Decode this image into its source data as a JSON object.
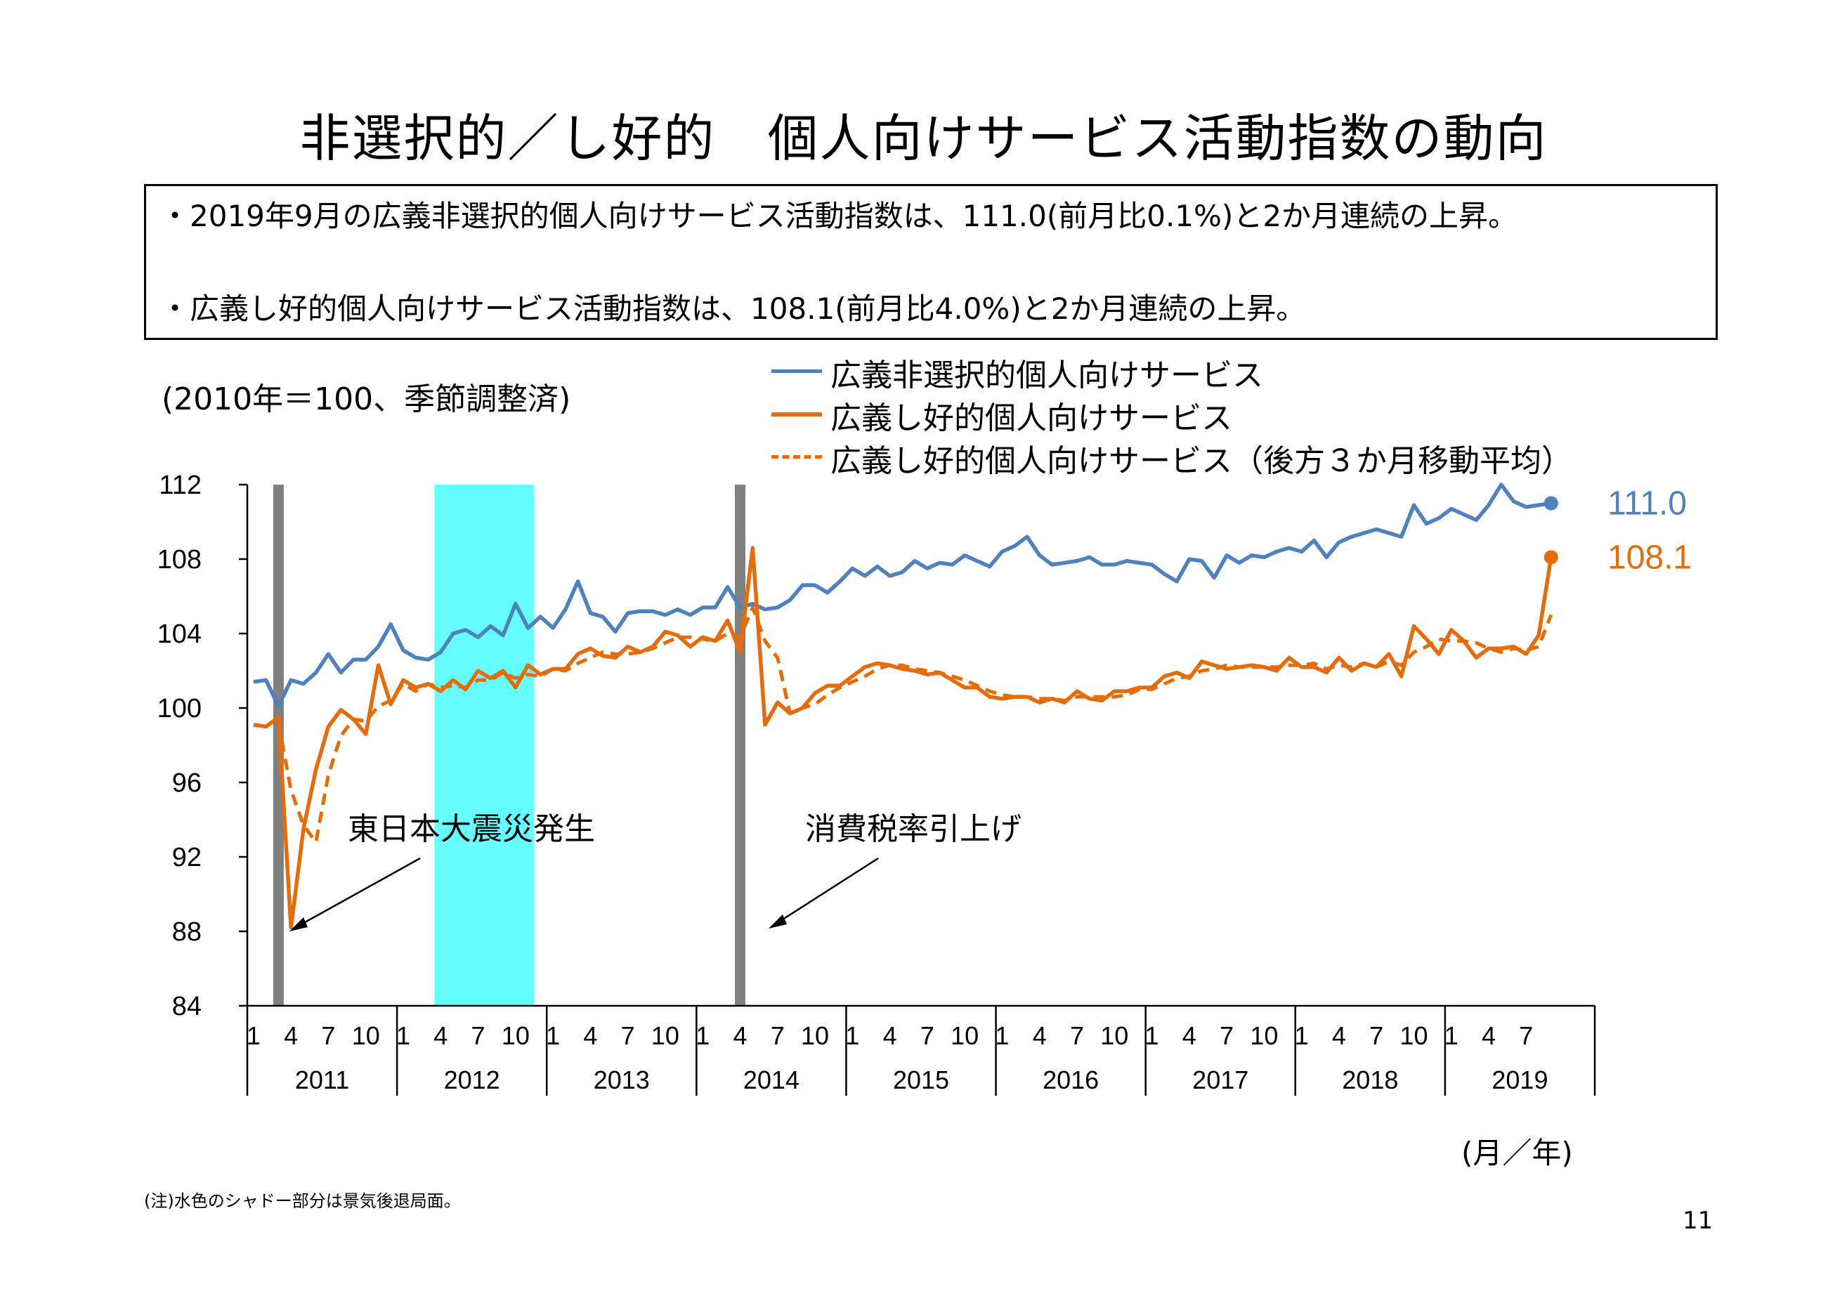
{
  "title": "非選択的／し好的　個人向けサービス活動指数の動向",
  "summary": {
    "bullet1": "・2019年9月の広義非選択的個人向けサービス活動指数は、111.0(前月比0.1%)と2か月連続の上昇。",
    "bullet2": "・広義し好的個人向けサービス活動指数は、108.1(前月比4.0%)と2か月連続の上昇。"
  },
  "unit_note": "(2010年＝100、季節調整済)",
  "x_unit": "(月／年)",
  "footnote": "(注)水色のシャドー部分は景気後退局面。",
  "page_number": "11",
  "colors": {
    "blue": "#4f81bd",
    "orange": "#e46c0a",
    "recession": "#66ffff",
    "event_bar": "#808080"
  },
  "chart_data": {
    "type": "line",
    "start": "2011-01",
    "ylim": [
      84,
      112
    ],
    "yticks": [
      84,
      88,
      92,
      96,
      100,
      104,
      108,
      112
    ],
    "month_ticks": [
      "1",
      "4",
      "7",
      "10"
    ],
    "years": [
      "2011",
      "2012",
      "2013",
      "2014",
      "2015",
      "2016",
      "2017",
      "2018",
      "2019"
    ],
    "series": [
      {
        "name": "広義非選択的個人向けサービス",
        "style": "solid",
        "color": "#4f81bd",
        "values": [
          101.4,
          101.5,
          100.1,
          101.5,
          101.3,
          101.9,
          102.9,
          101.9,
          102.6,
          102.6,
          103.3,
          104.5,
          103.1,
          102.7,
          102.6,
          103.0,
          104.0,
          104.2,
          103.8,
          104.4,
          103.9,
          105.6,
          104.3,
          104.9,
          104.3,
          105.3,
          106.8,
          105.1,
          104.9,
          104.1,
          105.1,
          105.2,
          105.2,
          105.0,
          105.3,
          105.0,
          105.4,
          105.4,
          106.5,
          105.4,
          105.6,
          105.3,
          105.4,
          105.8,
          106.6,
          106.6,
          106.2,
          106.8,
          107.5,
          107.1,
          107.6,
          107.1,
          107.3,
          107.9,
          107.5,
          107.8,
          107.7,
          108.2,
          107.9,
          107.6,
          108.4,
          108.7,
          109.2,
          108.2,
          107.7,
          107.8,
          107.9,
          108.1,
          107.7,
          107.7,
          107.9,
          107.8,
          107.7,
          107.2,
          106.8,
          108.0,
          107.9,
          107.0,
          108.2,
          107.8,
          108.2,
          108.1,
          108.4,
          108.6,
          108.4,
          109.0,
          108.1,
          108.9,
          109.2,
          109.4,
          109.6,
          109.4,
          109.2,
          110.9,
          109.9,
          110.2,
          110.7,
          110.4,
          110.1,
          110.9,
          112.0,
          111.1,
          110.8,
          110.9,
          111.0
        ]
      },
      {
        "name": "広義し好的個人向けサービス",
        "style": "solid",
        "color": "#e46c0a",
        "values": [
          99.1,
          99.0,
          99.5,
          88.2,
          93.5,
          96.7,
          99.0,
          99.9,
          99.4,
          98.6,
          102.3,
          100.2,
          101.5,
          101.1,
          101.3,
          100.9,
          101.5,
          101.0,
          102.0,
          101.6,
          102.0,
          101.1,
          102.3,
          101.8,
          102.1,
          102.1,
          102.9,
          103.2,
          102.8,
          102.7,
          103.3,
          103.0,
          103.3,
          104.1,
          103.9,
          103.3,
          103.8,
          103.6,
          104.7,
          103.0,
          108.6,
          99.1,
          100.3,
          99.7,
          100.0,
          100.8,
          101.2,
          101.2,
          101.7,
          102.2,
          102.4,
          102.3,
          102.1,
          102.0,
          101.8,
          101.9,
          101.5,
          101.1,
          101.1,
          100.6,
          100.5,
          100.6,
          100.6,
          100.3,
          100.5,
          100.3,
          100.9,
          100.5,
          100.4,
          100.9,
          100.9,
          101.1,
          101.1,
          101.7,
          101.9,
          101.6,
          102.5,
          102.3,
          102.1,
          102.2,
          102.3,
          102.2,
          102.0,
          102.7,
          102.2,
          102.2,
          101.9,
          102.7,
          102.0,
          102.4,
          102.2,
          102.9,
          101.7,
          104.4,
          103.7,
          102.9,
          104.2,
          103.6,
          102.7,
          103.2,
          103.2,
          103.3,
          102.9,
          103.9,
          108.1
        ]
      },
      {
        "name": "広義し好的個人向けサービス（後方３か月移動平均）",
        "style": "dashed",
        "color": "#e46c0a",
        "values": [
          null,
          null,
          99.2,
          95.6,
          93.7,
          92.8,
          96.4,
          98.5,
          99.4,
          99.3,
          100.1,
          100.4,
          101.3,
          100.9,
          101.3,
          101.1,
          101.2,
          101.1,
          101.5,
          101.5,
          101.9,
          101.6,
          101.8,
          101.7,
          102.1,
          102.0,
          102.4,
          102.7,
          103.0,
          102.9,
          102.9,
          103.0,
          103.2,
          103.5,
          103.8,
          103.8,
          103.7,
          103.6,
          104.0,
          103.8,
          105.4,
          103.6,
          102.7,
          99.7,
          100.0,
          100.2,
          100.7,
          101.1,
          101.4,
          101.7,
          102.1,
          102.3,
          102.3,
          102.1,
          102.0,
          101.9,
          101.7,
          101.5,
          101.2,
          100.9,
          100.7,
          100.6,
          100.6,
          100.5,
          100.5,
          100.4,
          100.6,
          100.6,
          100.6,
          100.6,
          100.7,
          101.0,
          101.0,
          101.3,
          101.6,
          101.7,
          102.0,
          102.1,
          102.3,
          102.2,
          102.2,
          102.2,
          102.2,
          102.3,
          102.3,
          102.4,
          102.1,
          102.3,
          102.2,
          102.4,
          102.2,
          102.5,
          102.3,
          103.0,
          103.3,
          103.7,
          103.6,
          103.6,
          103.5,
          103.2,
          103.0,
          103.2,
          103.1,
          103.3,
          105.0
        ]
      }
    ],
    "shading": [
      {
        "kind": "event",
        "from": "2011-03",
        "to": "2011-03",
        "label": "東日本大震災発生",
        "arrow_at": "2011-04"
      },
      {
        "kind": "recession",
        "from": "2012-04",
        "to": "2012-11"
      },
      {
        "kind": "event",
        "from": "2014-04",
        "to": "2014-04",
        "label": "消費税率引上げ",
        "arrow_at": "2014-04"
      }
    ],
    "end_labels": [
      "111.0",
      "108.1"
    ]
  }
}
